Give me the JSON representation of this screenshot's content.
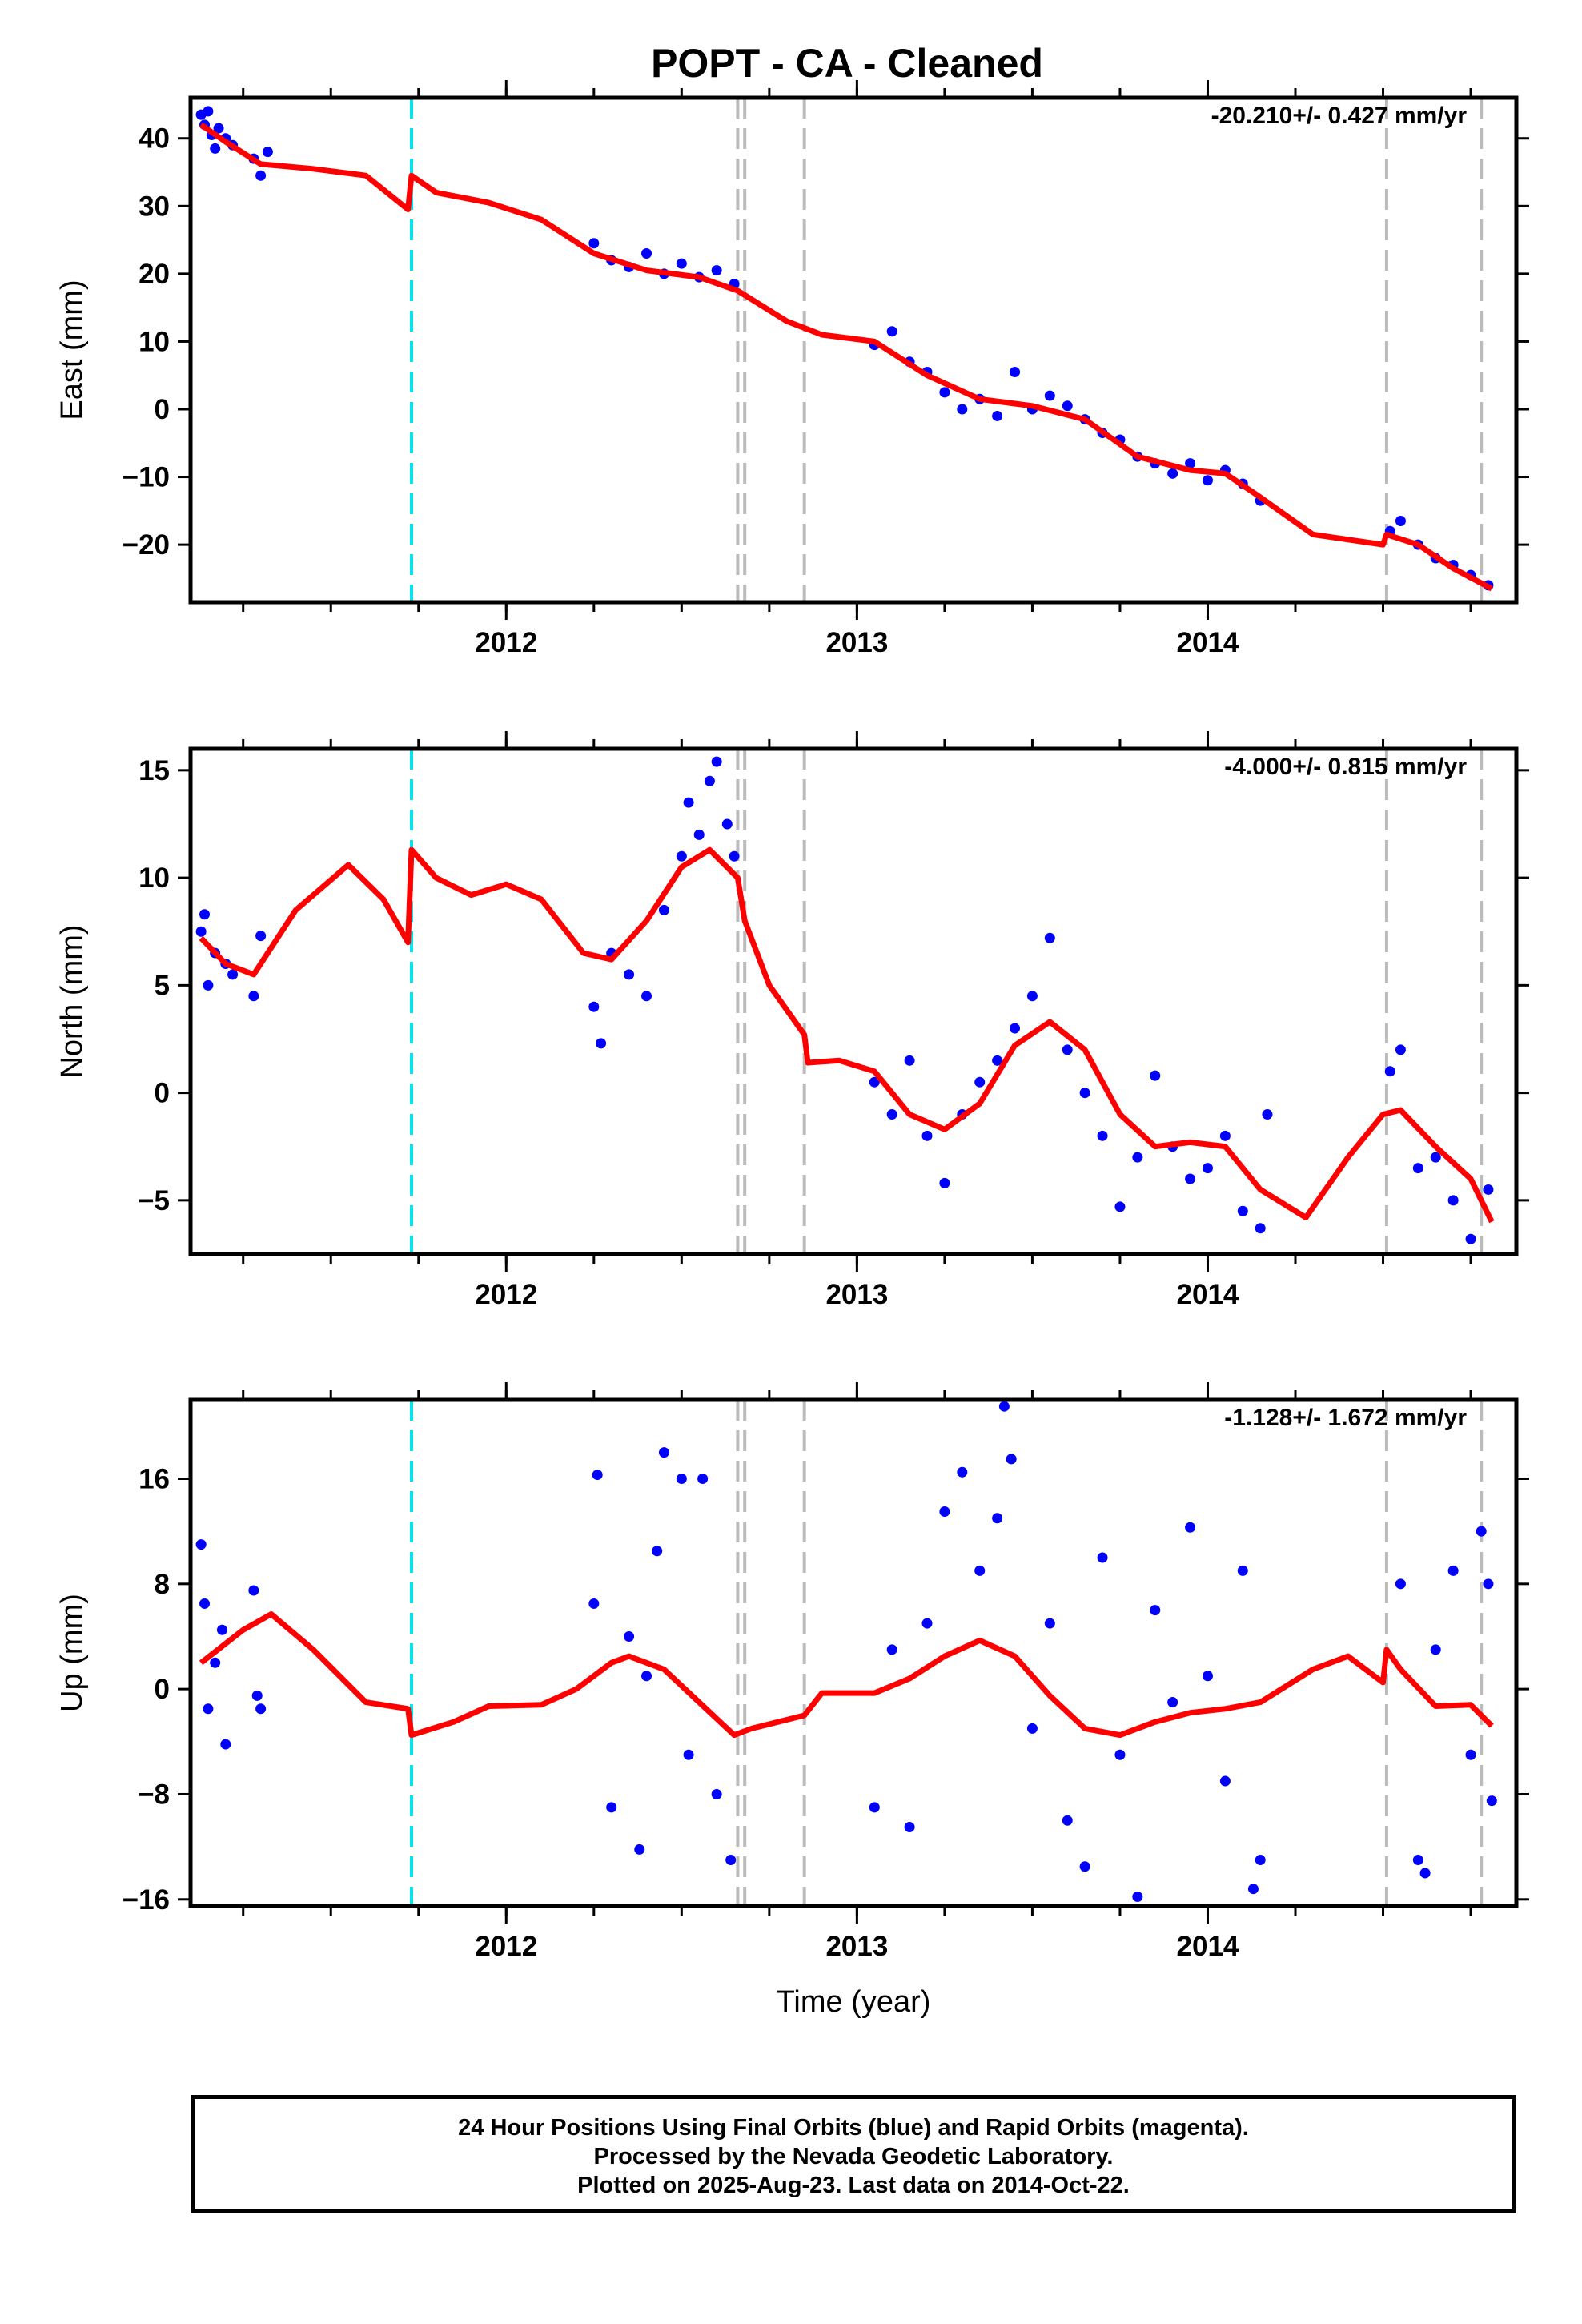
{
  "title": "POPT  - CA - Cleaned",
  "footer": {
    "line1": "24 Hour Positions Using Final Orbits (blue) and Rapid Orbits (magenta).",
    "line2": "Processed by the Nevada Geodetic Laboratory.",
    "line3": "Plotted on 2025-Aug-23. Last data on 2014-Oct-22."
  },
  "colors": {
    "data_points": "#0000ff",
    "model_curve": "#ff0000",
    "equipment_change": "#00e5ee",
    "other_event": "#bbbbbb"
  },
  "chart_data": [
    {
      "type": "scatter",
      "panel": "east",
      "ylabel": "East (mm)",
      "xlabel": "",
      "rate_text": "-20.210+/- 0.427 mm/yr",
      "xlim": [
        2011.1,
        2014.88
      ],
      "ylim": [
        -28.5,
        46
      ],
      "yticks": [
        -20,
        -10,
        0,
        10,
        20,
        30,
        40
      ],
      "xticks": [
        2012,
        2013,
        2014
      ],
      "equipment_change_lines": [
        2011.73
      ],
      "event_lines": [
        2012.66,
        2012.68,
        2012.85,
        2014.51,
        2014.78
      ],
      "model": [
        [
          2011.13,
          42.0
        ],
        [
          2011.2,
          39.5
        ],
        [
          2011.3,
          36.2
        ],
        [
          2011.45,
          35.5
        ],
        [
          2011.6,
          34.5
        ],
        [
          2011.72,
          29.5
        ],
        [
          2011.73,
          34.5
        ],
        [
          2011.8,
          32.0
        ],
        [
          2011.95,
          30.5
        ],
        [
          2012.1,
          28.0
        ],
        [
          2012.25,
          23.0
        ],
        [
          2012.4,
          20.5
        ],
        [
          2012.55,
          19.5
        ],
        [
          2012.66,
          17.5
        ],
        [
          2012.8,
          13.0
        ],
        [
          2012.9,
          11.0
        ],
        [
          2013.05,
          10.0
        ],
        [
          2013.2,
          5.0
        ],
        [
          2013.35,
          1.5
        ],
        [
          2013.5,
          0.5
        ],
        [
          2013.65,
          -1.5
        ],
        [
          2013.8,
          -7.0
        ],
        [
          2013.95,
          -9.0
        ],
        [
          2014.05,
          -9.5
        ],
        [
          2014.15,
          -13.0
        ],
        [
          2014.3,
          -18.5
        ],
        [
          2014.5,
          -20.0
        ],
        [
          2014.51,
          -18.5
        ],
        [
          2014.6,
          -20.0
        ],
        [
          2014.7,
          -23.5
        ],
        [
          2014.81,
          -26.5
        ]
      ],
      "points": [
        [
          2011.13,
          43.5
        ],
        [
          2011.14,
          42.0
        ],
        [
          2011.15,
          44.0
        ],
        [
          2011.16,
          40.5
        ],
        [
          2011.17,
          38.5
        ],
        [
          2011.18,
          41.5
        ],
        [
          2011.2,
          40.0
        ],
        [
          2011.22,
          39.0
        ],
        [
          2011.28,
          37.0
        ],
        [
          2011.3,
          34.5
        ],
        [
          2011.32,
          38.0
        ],
        [
          2012.25,
          24.5
        ],
        [
          2012.3,
          22.0
        ],
        [
          2012.35,
          21.0
        ],
        [
          2012.4,
          23.0
        ],
        [
          2012.45,
          20.0
        ],
        [
          2012.5,
          21.5
        ],
        [
          2012.55,
          19.5
        ],
        [
          2012.6,
          20.5
        ],
        [
          2012.65,
          18.5
        ],
        [
          2013.05,
          9.5
        ],
        [
          2013.1,
          11.5
        ],
        [
          2013.15,
          7.0
        ],
        [
          2013.2,
          5.5
        ],
        [
          2013.25,
          2.5
        ],
        [
          2013.3,
          0.0
        ],
        [
          2013.35,
          1.5
        ],
        [
          2013.4,
          -1.0
        ],
        [
          2013.45,
          5.5
        ],
        [
          2013.5,
          0.0
        ],
        [
          2013.55,
          2.0
        ],
        [
          2013.6,
          0.5
        ],
        [
          2013.65,
          -1.5
        ],
        [
          2013.7,
          -3.5
        ],
        [
          2013.75,
          -4.5
        ],
        [
          2013.8,
          -7.0
        ],
        [
          2013.85,
          -8.0
        ],
        [
          2013.9,
          -9.5
        ],
        [
          2013.95,
          -8.0
        ],
        [
          2014.0,
          -10.5
        ],
        [
          2014.05,
          -9.0
        ],
        [
          2014.1,
          -11.0
        ],
        [
          2014.15,
          -13.5
        ],
        [
          2014.52,
          -18.0
        ],
        [
          2014.55,
          -16.5
        ],
        [
          2014.6,
          -20.0
        ],
        [
          2014.65,
          -22.0
        ],
        [
          2014.7,
          -23.0
        ],
        [
          2014.75,
          -24.5
        ],
        [
          2014.8,
          -26.0
        ]
      ]
    },
    {
      "type": "scatter",
      "panel": "north",
      "ylabel": "North (mm)",
      "xlabel": "",
      "rate_text": "-4.000+/- 0.815 mm/yr",
      "xlim": [
        2011.1,
        2014.88
      ],
      "ylim": [
        -7.5,
        16
      ],
      "yticks": [
        -5,
        0,
        5,
        10,
        15
      ],
      "xticks": [
        2012,
        2013,
        2014
      ],
      "equipment_change_lines": [
        2011.73
      ],
      "event_lines": [
        2012.66,
        2012.68,
        2012.85,
        2014.51,
        2014.78
      ],
      "model": [
        [
          2011.13,
          7.2
        ],
        [
          2011.2,
          6.0
        ],
        [
          2011.28,
          5.5
        ],
        [
          2011.4,
          8.5
        ],
        [
          2011.55,
          10.6
        ],
        [
          2011.65,
          9.0
        ],
        [
          2011.72,
          7.0
        ],
        [
          2011.73,
          11.3
        ],
        [
          2011.8,
          10.0
        ],
        [
          2011.9,
          9.2
        ],
        [
          2012.0,
          9.7
        ],
        [
          2012.1,
          9.0
        ],
        [
          2012.22,
          6.5
        ],
        [
          2012.3,
          6.2
        ],
        [
          2012.4,
          8.0
        ],
        [
          2012.5,
          10.5
        ],
        [
          2012.58,
          11.3
        ],
        [
          2012.66,
          10.0
        ],
        [
          2012.68,
          8.0
        ],
        [
          2012.75,
          5.0
        ],
        [
          2012.85,
          2.7
        ],
        [
          2012.86,
          1.4
        ],
        [
          2012.95,
          1.5
        ],
        [
          2013.05,
          1.0
        ],
        [
          2013.15,
          -1.0
        ],
        [
          2013.25,
          -1.7
        ],
        [
          2013.35,
          -0.5
        ],
        [
          2013.45,
          2.2
        ],
        [
          2013.55,
          3.3
        ],
        [
          2013.65,
          2.0
        ],
        [
          2013.75,
          -1.0
        ],
        [
          2013.85,
          -2.5
        ],
        [
          2013.95,
          -2.3
        ],
        [
          2014.05,
          -2.5
        ],
        [
          2014.15,
          -4.5
        ],
        [
          2014.28,
          -5.8
        ],
        [
          2014.4,
          -3.0
        ],
        [
          2014.5,
          -1.0
        ],
        [
          2014.55,
          -0.8
        ],
        [
          2014.65,
          -2.5
        ],
        [
          2014.75,
          -4.0
        ],
        [
          2014.81,
          -6.0
        ]
      ],
      "points": [
        [
          2011.13,
          7.5
        ],
        [
          2011.14,
          8.3
        ],
        [
          2011.15,
          5.0
        ],
        [
          2011.17,
          6.5
        ],
        [
          2011.2,
          6.0
        ],
        [
          2011.22,
          5.5
        ],
        [
          2011.28,
          4.5
        ],
        [
          2011.3,
          7.3
        ],
        [
          2012.25,
          4.0
        ],
        [
          2012.27,
          2.3
        ],
        [
          2012.3,
          6.5
        ],
        [
          2012.35,
          5.5
        ],
        [
          2012.4,
          4.5
        ],
        [
          2012.45,
          8.5
        ],
        [
          2012.5,
          11.0
        ],
        [
          2012.52,
          13.5
        ],
        [
          2012.55,
          12.0
        ],
        [
          2012.58,
          14.5
        ],
        [
          2012.6,
          15.4
        ],
        [
          2012.63,
          12.5
        ],
        [
          2012.65,
          11.0
        ],
        [
          2013.05,
          0.5
        ],
        [
          2013.1,
          -1.0
        ],
        [
          2013.15,
          1.5
        ],
        [
          2013.2,
          -2.0
        ],
        [
          2013.25,
          -4.2
        ],
        [
          2013.3,
          -1.0
        ],
        [
          2013.35,
          0.5
        ],
        [
          2013.4,
          1.5
        ],
        [
          2013.45,
          3.0
        ],
        [
          2013.5,
          4.5
        ],
        [
          2013.55,
          7.2
        ],
        [
          2013.6,
          2.0
        ],
        [
          2013.65,
          0.0
        ],
        [
          2013.7,
          -2.0
        ],
        [
          2013.75,
          -5.3
        ],
        [
          2013.8,
          -3.0
        ],
        [
          2013.85,
          0.8
        ],
        [
          2013.9,
          -2.5
        ],
        [
          2013.95,
          -4.0
        ],
        [
          2014.0,
          -3.5
        ],
        [
          2014.05,
          -2.0
        ],
        [
          2014.1,
          -5.5
        ],
        [
          2014.15,
          -6.3
        ],
        [
          2014.17,
          -1.0
        ],
        [
          2014.52,
          1.0
        ],
        [
          2014.55,
          2.0
        ],
        [
          2014.6,
          -3.5
        ],
        [
          2014.65,
          -3.0
        ],
        [
          2014.7,
          -5.0
        ],
        [
          2014.75,
          -6.8
        ],
        [
          2014.8,
          -4.5
        ]
      ]
    },
    {
      "type": "scatter",
      "panel": "up",
      "ylabel": "Up (mm)",
      "xlabel": "Time (year)",
      "rate_text": "-1.128+/- 1.672 mm/yr",
      "xlim": [
        2011.1,
        2014.88
      ],
      "ylim": [
        -16.5,
        22
      ],
      "yticks": [
        -16,
        -8,
        0,
        8,
        16
      ],
      "xticks": [
        2012,
        2013,
        2014
      ],
      "equipment_change_lines": [
        2011.73
      ],
      "event_lines": [
        2012.66,
        2012.68,
        2012.85,
        2014.51,
        2014.78
      ],
      "model": [
        [
          2011.13,
          2.0
        ],
        [
          2011.25,
          4.5
        ],
        [
          2011.33,
          5.7
        ],
        [
          2011.45,
          3.0
        ],
        [
          2011.6,
          -1.0
        ],
        [
          2011.72,
          -1.5
        ],
        [
          2011.73,
          -3.5
        ],
        [
          2011.85,
          -2.5
        ],
        [
          2011.95,
          -1.3
        ],
        [
          2012.1,
          -1.2
        ],
        [
          2012.2,
          0.0
        ],
        [
          2012.3,
          2.0
        ],
        [
          2012.35,
          2.5
        ],
        [
          2012.45,
          1.5
        ],
        [
          2012.55,
          -1.0
        ],
        [
          2012.65,
          -3.5
        ],
        [
          2012.7,
          -3.0
        ],
        [
          2012.85,
          -2.0
        ],
        [
          2012.9,
          -0.3
        ],
        [
          2013.05,
          -0.3
        ],
        [
          2013.15,
          0.8
        ],
        [
          2013.25,
          2.5
        ],
        [
          2013.35,
          3.7
        ],
        [
          2013.45,
          2.5
        ],
        [
          2013.55,
          -0.5
        ],
        [
          2013.65,
          -3.0
        ],
        [
          2013.75,
          -3.5
        ],
        [
          2013.85,
          -2.5
        ],
        [
          2013.95,
          -1.8
        ],
        [
          2014.05,
          -1.5
        ],
        [
          2014.15,
          -1.0
        ],
        [
          2014.3,
          1.5
        ],
        [
          2014.4,
          2.5
        ],
        [
          2014.5,
          0.5
        ],
        [
          2014.51,
          3.0
        ],
        [
          2014.55,
          1.5
        ],
        [
          2014.65,
          -1.3
        ],
        [
          2014.75,
          -1.2
        ],
        [
          2014.81,
          -2.8
        ]
      ],
      "points": [
        [
          2011.13,
          11.0
        ],
        [
          2011.14,
          6.5
        ],
        [
          2011.15,
          -1.5
        ],
        [
          2011.17,
          2.0
        ],
        [
          2011.19,
          4.5
        ],
        [
          2011.2,
          -4.2
        ],
        [
          2011.28,
          7.5
        ],
        [
          2011.29,
          -0.5
        ],
        [
          2011.3,
          -1.5
        ],
        [
          2012.25,
          6.5
        ],
        [
          2012.26,
          16.3
        ],
        [
          2012.3,
          -9.0
        ],
        [
          2012.35,
          4.0
        ],
        [
          2012.38,
          -12.2
        ],
        [
          2012.4,
          1.0
        ],
        [
          2012.43,
          10.5
        ],
        [
          2012.45,
          18.0
        ],
        [
          2012.5,
          16.0
        ],
        [
          2012.52,
          -5.0
        ],
        [
          2012.56,
          16.0
        ],
        [
          2012.6,
          -8.0
        ],
        [
          2012.64,
          -13.0
        ],
        [
          2013.05,
          -9.0
        ],
        [
          2013.1,
          3.0
        ],
        [
          2013.15,
          -10.5
        ],
        [
          2013.2,
          5.0
        ],
        [
          2013.25,
          13.5
        ],
        [
          2013.3,
          16.5
        ],
        [
          2013.35,
          9.0
        ],
        [
          2013.4,
          13.0
        ],
        [
          2013.42,
          21.5
        ],
        [
          2013.44,
          17.5
        ],
        [
          2013.5,
          -3.0
        ],
        [
          2013.55,
          5.0
        ],
        [
          2013.6,
          -10.0
        ],
        [
          2013.65,
          -13.5
        ],
        [
          2013.7,
          10.0
        ],
        [
          2013.75,
          -5.0
        ],
        [
          2013.8,
          -15.8
        ],
        [
          2013.85,
          6.0
        ],
        [
          2013.9,
          -1.0
        ],
        [
          2013.95,
          12.3
        ],
        [
          2014.0,
          1.0
        ],
        [
          2014.05,
          -7.0
        ],
        [
          2014.1,
          9.0
        ],
        [
          2014.13,
          -15.2
        ],
        [
          2014.15,
          -13.0
        ],
        [
          2014.55,
          8.0
        ],
        [
          2014.6,
          -13.0
        ],
        [
          2014.62,
          -14.0
        ],
        [
          2014.65,
          3.0
        ],
        [
          2014.7,
          9.0
        ],
        [
          2014.75,
          -5.0
        ],
        [
          2014.78,
          12.0
        ],
        [
          2014.8,
          8.0
        ],
        [
          2014.81,
          -8.5
        ]
      ]
    }
  ]
}
